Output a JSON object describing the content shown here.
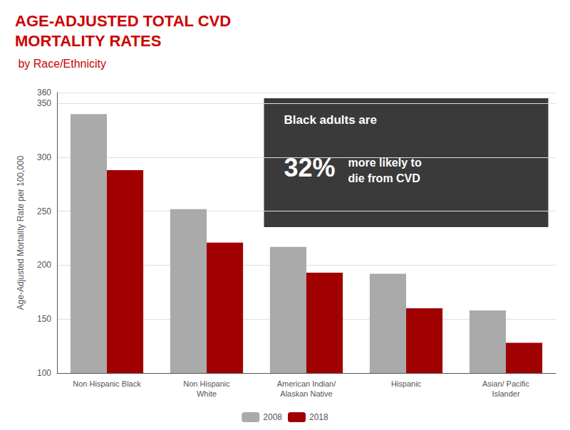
{
  "chart_data": {
    "type": "bar",
    "title": "AGE-ADJUSTED TOTAL CVD\nMORTALITY RATES",
    "subtitle": " by Race/Ethnicity",
    "categories": [
      "Non Hispanic Black",
      "Non Hispanic\nWhite",
      "American Indian/\nAlaskan Native",
      "Hispanic",
      "Asian/ Pacific\nIslander"
    ],
    "series": [
      {
        "name": "2008",
        "color": "#aaaaaa",
        "values": [
          340,
          252,
          217,
          192,
          158
        ]
      },
      {
        "name": "2018",
        "color": "#a00000",
        "values": [
          288,
          221,
          193,
          160,
          128
        ]
      }
    ],
    "ylabel": "Age-Adjusted Mortality Rate per 100,000",
    "ylim": [
      100,
      360
    ],
    "yticks": [
      100,
      150,
      200,
      250,
      300,
      350
    ],
    "grid": true,
    "legend": "bottom",
    "annotations": [
      "Black adults are",
      "32%",
      "more likely to\ndie from CVD"
    ]
  }
}
